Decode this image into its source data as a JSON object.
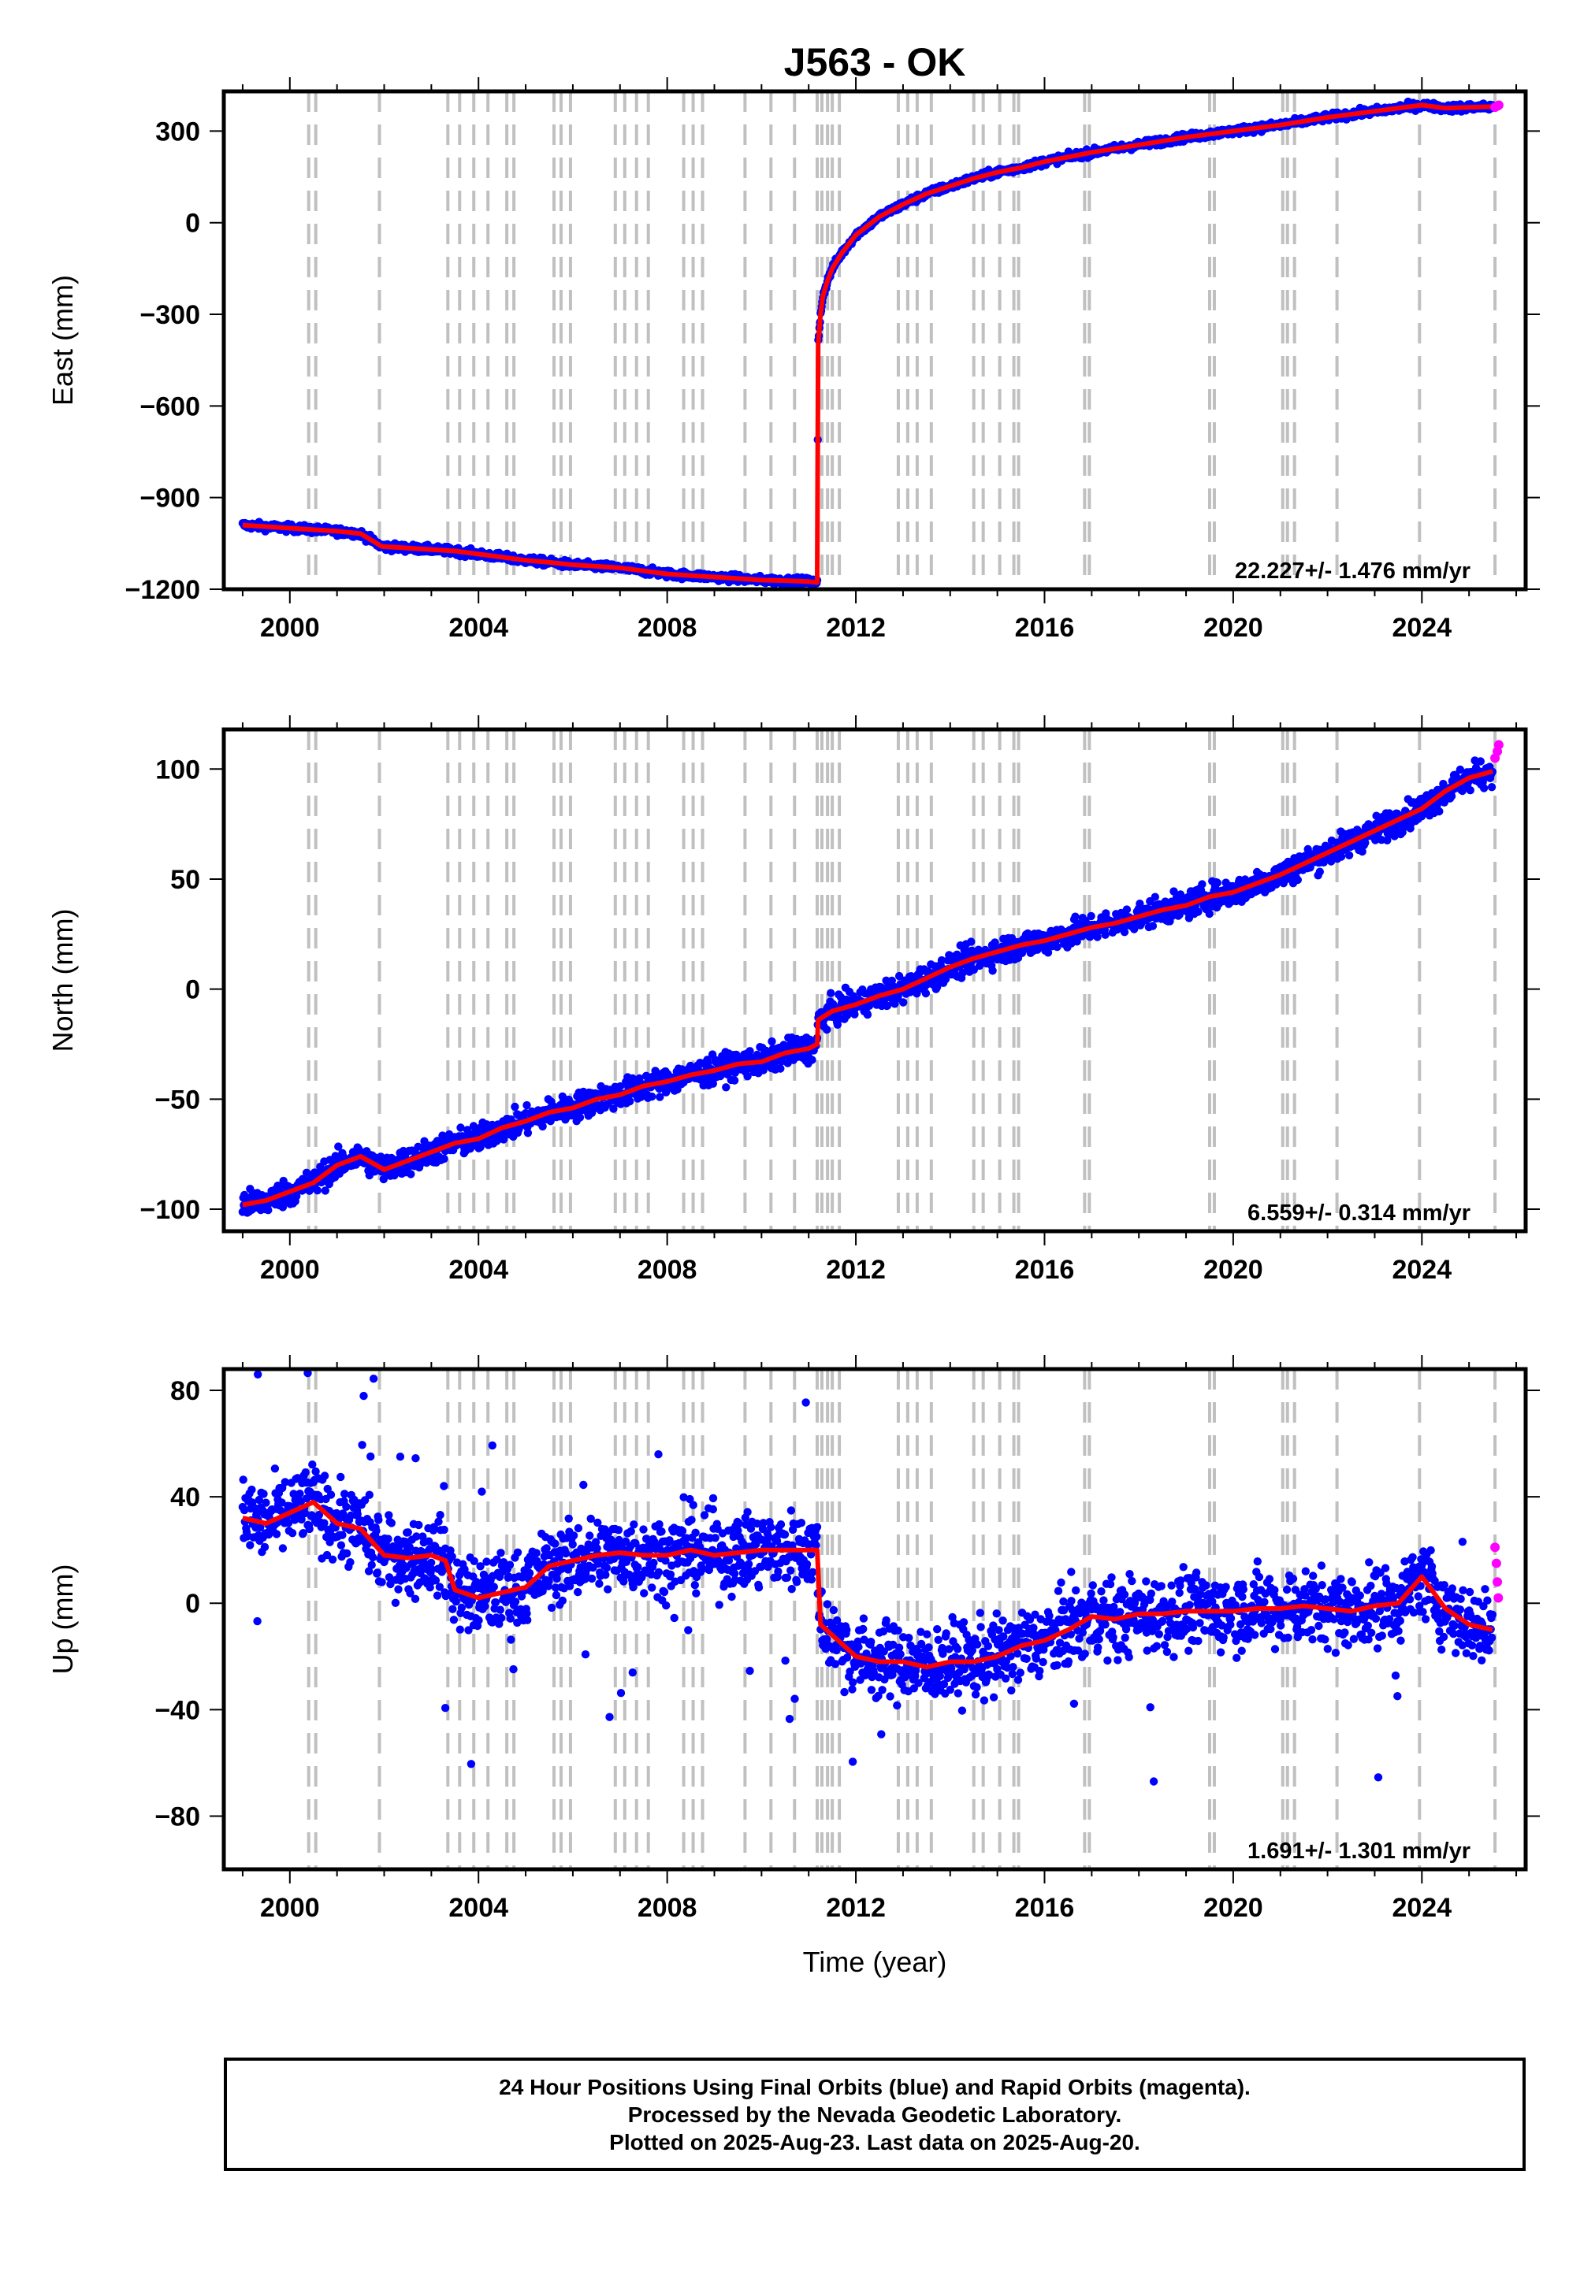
{
  "footer": {
    "line1": "24 Hour Positions Using Final Orbits (blue) and Rapid Orbits (magenta).",
    "line2": "Processed by the Nevada Geodetic Laboratory.",
    "line3": "Plotted on 2025-Aug-23. Last data on 2025-Aug-20."
  },
  "colors": {
    "final_orbits": "#0000ff",
    "rapid_orbits": "#ff00ff",
    "model": "#ff0000",
    "event_lines": "#c0c0c0"
  },
  "chart_data": [
    {
      "type": "scatter",
      "title": "J563 - OK",
      "xlabel": "",
      "ylabel": "East (mm)",
      "xlim": [
        1998.6,
        2026.2
      ],
      "ylim": [
        -1200,
        430
      ],
      "xticks": [
        2000,
        2004,
        2008,
        2012,
        2016,
        2020,
        2024
      ],
      "yticks": [
        300,
        0,
        -300,
        -600,
        -900,
        -1200
      ],
      "ytick_labels": [
        "300",
        "0",
        "−300",
        "−600",
        "−900",
        "−1200"
      ],
      "annotation": "22.227+/- 1.476 mm/yr",
      "grid": false,
      "event_lines": [
        2000.4,
        2000.55,
        2001.9,
        2003.35,
        2003.6,
        2003.9,
        2004.2,
        2004.6,
        2004.75,
        2005.6,
        2005.75,
        2005.95,
        2006.9,
        2007.1,
        2007.35,
        2007.6,
        2008.35,
        2008.55,
        2008.75,
        2009.65,
        2010.2,
        2010.7,
        2011.18,
        2011.28,
        2011.4,
        2011.5,
        2011.65,
        2012.9,
        2013.1,
        2013.3,
        2013.6,
        2014.5,
        2014.7,
        2015.05,
        2015.35,
        2015.45,
        2016.85,
        2016.95,
        2019.5,
        2019.6,
        2021.05,
        2021.15,
        2021.3,
        2022.2,
        2023.95,
        2025.55
      ],
      "series": [
        {
          "name": "Final Orbits",
          "color": "#0000ff",
          "x": [
            1999.0,
            1999.5,
            2000.0,
            2000.5,
            2001.0,
            2001.5,
            2001.95,
            2002.5,
            2003.0,
            2003.5,
            2004.0,
            2004.5,
            2005.0,
            2005.5,
            2006.0,
            2006.5,
            2007.0,
            2007.5,
            2008.0,
            2008.5,
            2009.0,
            2009.5,
            2010.0,
            2010.5,
            2011.0,
            2011.18,
            2011.2,
            2011.25,
            2011.3,
            2011.4,
            2011.5,
            2011.7,
            2012.0,
            2012.5,
            2013.0,
            2013.5,
            2014.0,
            2014.5,
            2015.0,
            2015.5,
            2016.0,
            2017.0,
            2018.0,
            2019.0,
            2020.0,
            2021.0,
            2022.0,
            2023.0,
            2024.0,
            2024.5,
            2025.0,
            2025.5
          ],
          "y": [
            -990,
            -995,
            -1000,
            -1005,
            -1010,
            -1018,
            -1060,
            -1065,
            -1070,
            -1075,
            -1085,
            -1095,
            -1105,
            -1112,
            -1120,
            -1125,
            -1130,
            -1140,
            -1150,
            -1155,
            -1160,
            -1165,
            -1170,
            -1172,
            -1175,
            -1178,
            -400,
            -300,
            -240,
            -190,
            -150,
            -100,
            -40,
            20,
            60,
            95,
            120,
            145,
            165,
            180,
            200,
            230,
            255,
            280,
            300,
            320,
            345,
            365,
            385,
            375,
            378,
            380
          ]
        },
        {
          "name": "Rapid Orbits",
          "color": "#ff00ff",
          "x": [
            2025.55,
            2025.6,
            2025.63
          ],
          "y": [
            378,
            382,
            385
          ]
        }
      ]
    },
    {
      "type": "scatter",
      "title": "",
      "xlabel": "",
      "ylabel": "North (mm)",
      "xlim": [
        1998.6,
        2026.2
      ],
      "ylim": [
        -110,
        118
      ],
      "xticks": [
        2000,
        2004,
        2008,
        2012,
        2016,
        2020,
        2024
      ],
      "yticks": [
        100,
        50,
        0,
        -50,
        -100
      ],
      "ytick_labels": [
        "100",
        "50",
        "0",
        "−50",
        "−100"
      ],
      "annotation": "6.559+/- 0.314 mm/yr",
      "grid": false,
      "series": [
        {
          "name": "Final Orbits",
          "color": "#0000ff",
          "x": [
            1999.0,
            1999.5,
            2000.0,
            2000.5,
            2001.0,
            2001.5,
            2002.0,
            2002.5,
            2003.0,
            2003.5,
            2004.0,
            2004.5,
            2005.0,
            2005.5,
            2006.0,
            2006.5,
            2007.0,
            2007.5,
            2008.0,
            2008.5,
            2009.0,
            2009.5,
            2010.0,
            2010.5,
            2011.0,
            2011.18,
            2011.2,
            2011.5,
            2012.0,
            2012.5,
            2013.0,
            2013.5,
            2014.0,
            2014.5,
            2015.0,
            2015.5,
            2016.0,
            2016.5,
            2017.0,
            2017.5,
            2018.0,
            2018.5,
            2019.0,
            2019.5,
            2020.0,
            2020.5,
            2021.0,
            2021.5,
            2022.0,
            2022.5,
            2023.0,
            2023.5,
            2024.0,
            2024.5,
            2025.0,
            2025.5
          ],
          "y": [
            -98,
            -96,
            -92,
            -88,
            -80,
            -76,
            -82,
            -78,
            -74,
            -70,
            -68,
            -63,
            -60,
            -56,
            -54,
            -50,
            -48,
            -44,
            -42,
            -39,
            -37,
            -34,
            -33,
            -29,
            -27,
            -25,
            -14,
            -10,
            -7,
            -3,
            0,
            5,
            10,
            14,
            17,
            20,
            22,
            25,
            28,
            30,
            33,
            36,
            38,
            42,
            44,
            48,
            52,
            57,
            62,
            67,
            72,
            77,
            82,
            90,
            96,
            99
          ]
        },
        {
          "name": "Rapid Orbits",
          "color": "#ff00ff",
          "x": [
            2025.55,
            2025.6,
            2025.63
          ],
          "y": [
            105,
            108,
            111
          ]
        }
      ]
    },
    {
      "type": "scatter",
      "title": "",
      "xlabel": "Time (year)",
      "ylabel": "Up (mm)",
      "xlim": [
        1998.6,
        2026.2
      ],
      "ylim": [
        -100,
        88
      ],
      "xticks": [
        2000,
        2004,
        2008,
        2012,
        2016,
        2020,
        2024
      ],
      "yticks": [
        80,
        40,
        0,
        -40,
        -80
      ],
      "ytick_labels": [
        "80",
        "40",
        "0",
        "−40",
        "−80"
      ],
      "annotation": "1.691+/- 1.301 mm/yr",
      "grid": false,
      "series": [
        {
          "name": "Final Orbits",
          "color": "#0000ff",
          "x": [
            1999.0,
            1999.5,
            2000.0,
            2000.5,
            2001.0,
            2001.5,
            2002.0,
            2002.5,
            2003.0,
            2003.3,
            2003.5,
            2004.0,
            2004.5,
            2005.0,
            2005.5,
            2006.0,
            2006.5,
            2007.0,
            2007.5,
            2008.0,
            2008.5,
            2009.0,
            2009.5,
            2010.0,
            2010.5,
            2011.0,
            2011.18,
            2011.25,
            2011.5,
            2012.0,
            2012.5,
            2013.0,
            2013.5,
            2014.0,
            2014.5,
            2015.0,
            2015.5,
            2016.0,
            2016.5,
            2017.0,
            2017.5,
            2018.0,
            2018.5,
            2019.0,
            2019.5,
            2020.0,
            2020.5,
            2021.0,
            2021.5,
            2022.0,
            2022.5,
            2023.0,
            2023.5,
            2024.0,
            2024.5,
            2025.0,
            2025.5
          ],
          "y": [
            32,
            30,
            34,
            38,
            30,
            28,
            18,
            17,
            18,
            16,
            5,
            2,
            4,
            6,
            14,
            16,
            18,
            19,
            18,
            18,
            20,
            18,
            19,
            20,
            20,
            20,
            20,
            -8,
            -12,
            -20,
            -22,
            -22,
            -24,
            -22,
            -22,
            -20,
            -16,
            -14,
            -10,
            -5,
            -6,
            -4,
            -4,
            -3,
            -3,
            -3,
            -2,
            -2,
            -1,
            -2,
            -3,
            -1,
            0,
            10,
            -2,
            -8,
            -10
          ]
        },
        {
          "name": "Rapid Orbits",
          "color": "#ff00ff",
          "x": [
            2025.55,
            2025.58,
            2025.6,
            2025.62
          ],
          "y": [
            21,
            15,
            8,
            2
          ]
        }
      ]
    }
  ]
}
